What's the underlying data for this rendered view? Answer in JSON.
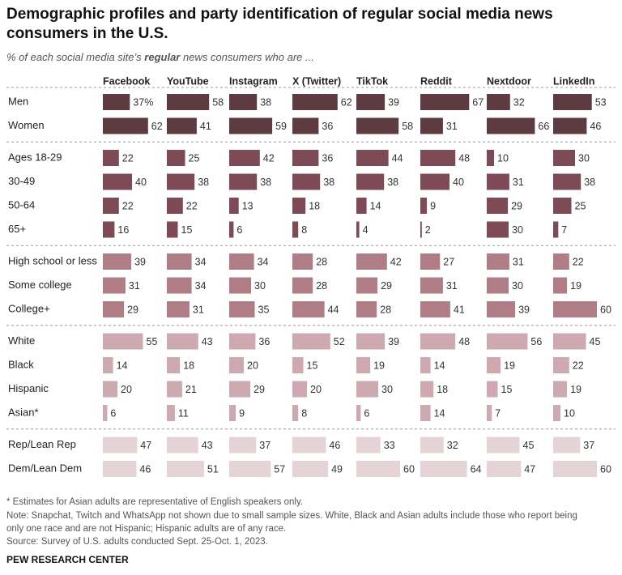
{
  "chart_data": {
    "type": "bar",
    "title": [
      "Demographic profiles and party identification of regular social media news",
      "consumers in the U.S."
    ],
    "subtitle": [
      "% of each social media site’s ",
      "regular",
      " news consumers who are ..."
    ],
    "categories": [
      "Men",
      "Women",
      "Ages 18-29",
      "30-49",
      "50-64",
      "65+",
      "High school or less",
      "Some college",
      "College+",
      "White",
      "Black",
      "Hispanic",
      "Asian*",
      "Rep/Lean Rep",
      "Dem/Lean Dem"
    ],
    "category_colors": [
      "#5e3a41",
      "#5e3a41",
      "#7d4a55",
      "#7d4a55",
      "#7d4a55",
      "#7d4a55",
      "#b07c86",
      "#b07c86",
      "#b07c86",
      "#cfa9b0",
      "#cfa9b0",
      "#cfa9b0",
      "#cfa9b0",
      "#e5d3d6",
      "#e5d3d6"
    ],
    "series": [
      {
        "name": "Facebook",
        "values": [
          37,
          62,
          22,
          40,
          22,
          16,
          39,
          31,
          29,
          55,
          14,
          20,
          6,
          47,
          46
        ],
        "value_labels": [
          "37%",
          "62",
          "22",
          "40",
          "22",
          "16",
          "39",
          "31",
          "29",
          "55",
          "14",
          "20",
          "6",
          "47",
          "46"
        ]
      },
      {
        "name": "YouTube",
        "values": [
          58,
          41,
          25,
          38,
          22,
          15,
          34,
          34,
          31,
          43,
          18,
          21,
          11,
          43,
          51
        ]
      },
      {
        "name": "Instagram",
        "values": [
          38,
          59,
          42,
          38,
          13,
          6,
          34,
          30,
          35,
          36,
          20,
          29,
          9,
          37,
          57
        ]
      },
      {
        "name": "X (Twitter)",
        "values": [
          62,
          36,
          36,
          38,
          18,
          8,
          28,
          28,
          44,
          52,
          15,
          20,
          8,
          46,
          49
        ]
      },
      {
        "name": "TikTok",
        "values": [
          39,
          58,
          44,
          38,
          14,
          4,
          42,
          29,
          28,
          39,
          19,
          30,
          6,
          33,
          60
        ]
      },
      {
        "name": "Reddit",
        "values": [
          67,
          31,
          48,
          40,
          9,
          2,
          27,
          31,
          41,
          48,
          14,
          18,
          14,
          32,
          64
        ]
      },
      {
        "name": "Nextdoor",
        "values": [
          32,
          66,
          10,
          31,
          29,
          30,
          31,
          30,
          39,
          56,
          19,
          15,
          7,
          45,
          47
        ]
      },
      {
        "name": "LinkedIn",
        "values": [
          53,
          46,
          30,
          38,
          25,
          7,
          22,
          19,
          60,
          45,
          22,
          19,
          10,
          37,
          60
        ]
      }
    ],
    "notes": [
      "* Estimates for Asian adults are representative of English speakers only.",
      "Note: Snapchat, Twitch and WhatsApp not shown due to small sample sizes. White, Black and Asian adults include those who report being",
      "only one race and are not Hispanic; Hispanic adults are of any race.",
      "Source: Survey of U.S. adults conducted Sept. 25-Oct. 1, 2023."
    ],
    "credit": "PEW RESEARCH CENTER"
  }
}
